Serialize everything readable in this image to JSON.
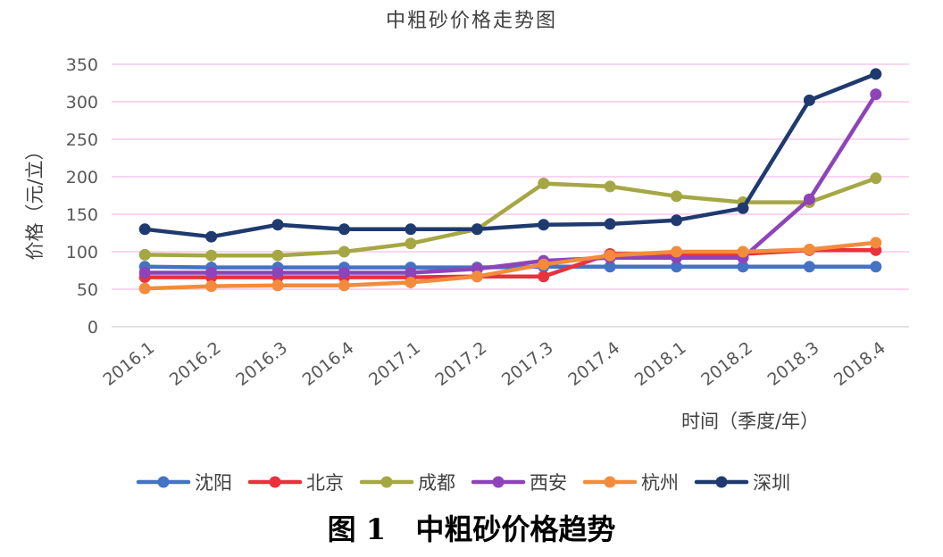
{
  "figure_caption": "图 1   中粗砂价格趋势",
  "chart_data": {
    "type": "line",
    "title": "中粗砂价格走势图",
    "xlabel": "时间（季度/年）",
    "ylabel": "价格（元/立）",
    "categories": [
      "2016.1",
      "2016.2",
      "2016.3",
      "2016.4",
      "2017.1",
      "2017.2",
      "2017.3",
      "2017.4",
      "2018.1",
      "2018.2",
      "2018.3",
      "2018.4"
    ],
    "ylim": [
      0,
      350
    ],
    "yticks": [
      0,
      50,
      100,
      150,
      200,
      250,
      300,
      350
    ],
    "grid": true,
    "legend_position": "bottom",
    "series": [
      {
        "name": "沈阳",
        "color": "#4472C4",
        "values": [
          80,
          79,
          79,
          79,
          79,
          79,
          80,
          80,
          80,
          80,
          80,
          80
        ]
      },
      {
        "name": "北京",
        "color": "#E8323C",
        "values": [
          66,
          66,
          66,
          66,
          66,
          67,
          67,
          97,
          97,
          97,
          102,
          102
        ]
      },
      {
        "name": "成都",
        "color": "#A5A744",
        "values": [
          96,
          95,
          95,
          100,
          111,
          130,
          191,
          187,
          174,
          166,
          166,
          198
        ]
      },
      {
        "name": "西安",
        "color": "#8E44B8",
        "values": [
          72,
          72,
          72,
          72,
          72,
          77,
          88,
          92,
          92,
          92,
          170,
          310
        ]
      },
      {
        "name": "杭州",
        "color": "#F28C3C",
        "values": [
          51,
          54,
          55,
          55,
          59,
          67,
          83,
          95,
          100,
          100,
          103,
          112
        ]
      },
      {
        "name": "深圳",
        "color": "#1F3A6E",
        "values": [
          130,
          120,
          136,
          130,
          130,
          130,
          136,
          137,
          142,
          158,
          302,
          337
        ]
      }
    ]
  }
}
